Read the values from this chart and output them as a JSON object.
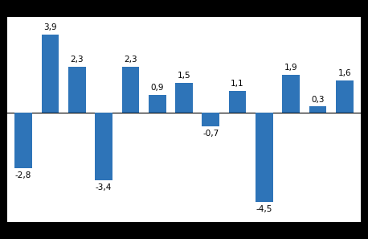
{
  "values": [
    -2.8,
    3.9,
    2.3,
    -3.4,
    2.3,
    0.9,
    1.5,
    -0.7,
    1.1,
    -4.5,
    1.9,
    0.3,
    1.6
  ],
  "bar_color": "#2E74B8",
  "background_color": "#FFFFFF",
  "outer_background": "#000000",
  "ylim": [
    -5.5,
    4.8
  ],
  "grid_color": "#AAAAAA",
  "label_fontsize": 7.5,
  "bar_width": 0.65
}
